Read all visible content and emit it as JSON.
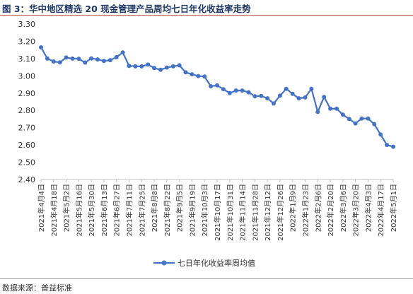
{
  "title": "图 3：华中地区精选 20 现金管理产品周均七日年化收益率走势",
  "source": "数据来源：普益标准",
  "colors": {
    "line": "#4472c4",
    "title": "#1f3864",
    "rule": "#c0504d"
  },
  "chart_data": {
    "type": "line",
    "title": "",
    "xlabel": "",
    "ylabel": "",
    "ylim": [
      2.4,
      3.3
    ],
    "yticks": [
      "3.30",
      "3.20",
      "3.10",
      "3.00",
      "2.90",
      "2.80",
      "2.70",
      "2.60",
      "2.50",
      "2.40"
    ],
    "grid": false,
    "legend_position": "bottom",
    "x_tick_labels": [
      "2021年4月4日",
      "2021年4月18日",
      "2021年5月2日",
      "2021年5月16日",
      "2021年5月30日",
      "2021年6月13日",
      "2021年6月27日",
      "2021年7月11日",
      "2021年7月25日",
      "2021年8月8日",
      "2021年8月22日",
      "2021年9月5日",
      "2021年9月19日",
      "2021年10月3日",
      "2021年10月17日",
      "2021年10月31日",
      "2021年11月14日",
      "2021年11月28日",
      "2021年12月12日",
      "2021年12月26日",
      "2022年1月9日",
      "2022年1月23日",
      "2022年2月6日",
      "2022年2月20日",
      "2022年3月6日",
      "2022年3月20日",
      "2022年4月3日",
      "2022年4月17日",
      "2022年5月1日"
    ],
    "series": [
      {
        "name": "七日年化收益率周均值",
        "values": [
          3.165,
          3.1,
          3.083,
          3.078,
          3.106,
          3.1,
          3.099,
          3.077,
          3.101,
          3.095,
          3.086,
          3.091,
          3.108,
          3.135,
          3.058,
          3.055,
          3.055,
          3.065,
          3.045,
          3.035,
          3.048,
          3.055,
          3.061,
          3.02,
          3.009,
          2.999,
          2.996,
          2.94,
          2.945,
          2.923,
          2.9,
          2.915,
          2.915,
          2.905,
          2.882,
          2.884,
          2.87,
          2.84,
          2.885,
          2.925,
          2.896,
          2.87,
          2.875,
          2.925,
          2.791,
          2.878,
          2.81,
          2.81,
          2.775,
          2.75,
          2.725,
          2.753,
          2.753,
          2.72,
          2.66,
          2.6,
          2.59
        ]
      }
    ]
  }
}
